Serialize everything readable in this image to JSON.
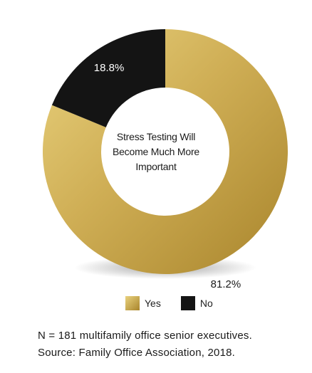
{
  "chart_data": {
    "type": "pie",
    "donut": true,
    "center_text": [
      "Stress Testing Will",
      "Become Much More",
      "Important"
    ],
    "slices": [
      {
        "label": "Yes",
        "value": 81.2,
        "display": "81.2%",
        "color": "#c9a64a"
      },
      {
        "label": "No",
        "value": 18.8,
        "display": "18.8%",
        "color": "#141414"
      }
    ],
    "legend_position": "bottom"
  },
  "footnote": {
    "line1": "N = 181 multifamily office senior executives.",
    "line2": "Source: Family Office Association, 2018."
  }
}
